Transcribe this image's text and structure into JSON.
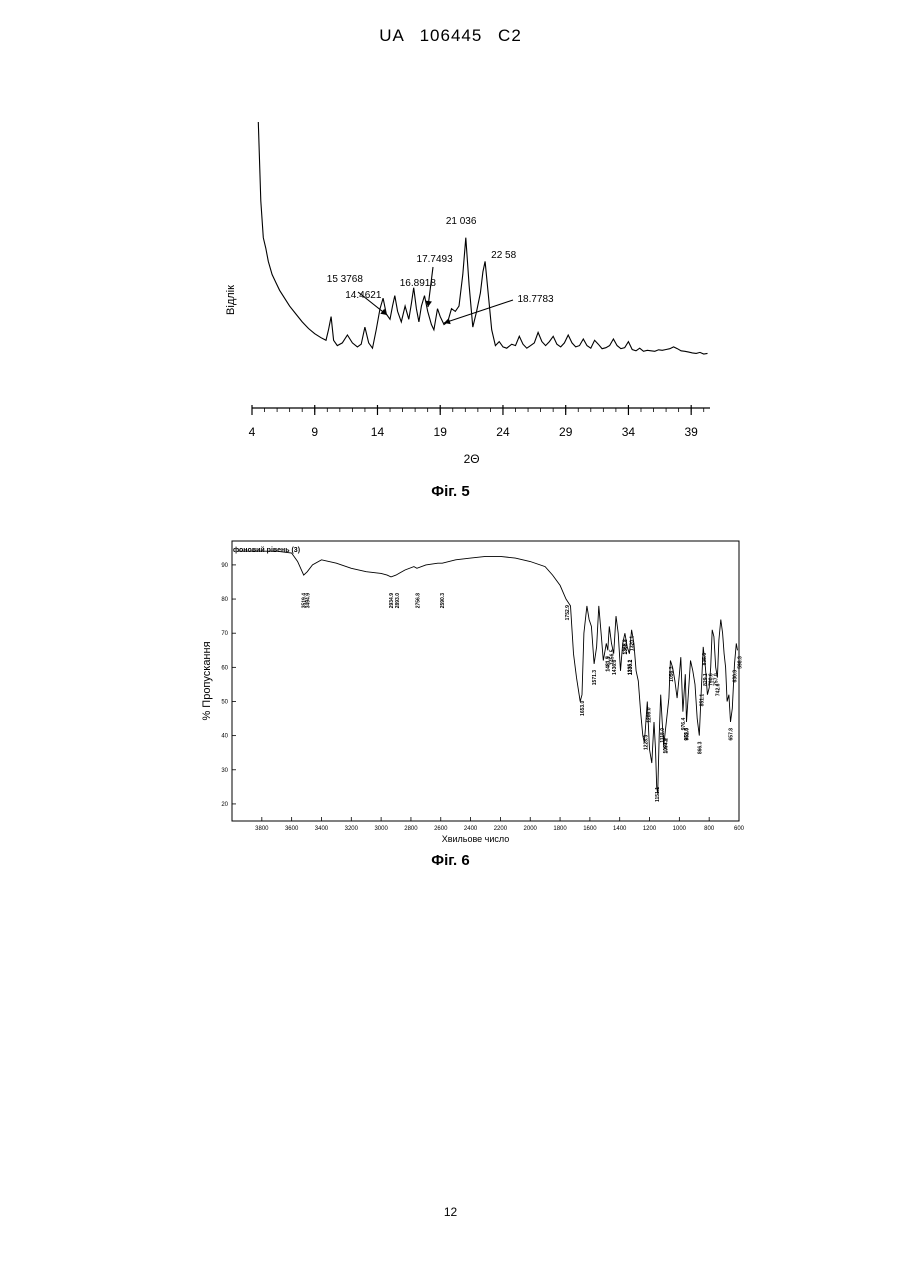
{
  "header": {
    "text": "UA   106445   C2"
  },
  "page_number": "12",
  "chart_data": [
    {
      "type": "line",
      "caption": "Фіг. 5",
      "xlabel": "2Θ",
      "ylabel": "Відлік",
      "xlim": [
        4,
        40.5
      ],
      "x_ticks": [
        4,
        9,
        14,
        19,
        24,
        29,
        34,
        39
      ],
      "x_tick_labels": [
        "4",
        "9",
        "14",
        "19",
        "24",
        "29",
        "34",
        "39"
      ],
      "series": [
        {
          "x": [
            4.5,
            4.7,
            4.9,
            5.1,
            5.3,
            5.6,
            5.9,
            6.2,
            6.6,
            7.0,
            7.5,
            8.0,
            8.5,
            9.0,
            9.5,
            9.9,
            10.1,
            10.3,
            10.5,
            10.8,
            11.2,
            11.6,
            12.0,
            12.4,
            12.7,
            13.0,
            13.3,
            13.6,
            13.9,
            14.2,
            14.45,
            14.7,
            15.0,
            15.2,
            15.38,
            15.6,
            15.9,
            16.2,
            16.5,
            16.7,
            16.89,
            17.1,
            17.3,
            17.5,
            17.75,
            18.0,
            18.3,
            18.5,
            18.78,
            19.0,
            19.3,
            19.6,
            19.9,
            20.2,
            20.5,
            20.8,
            21.04,
            21.3,
            21.6,
            21.9,
            22.2,
            22.4,
            22.58,
            22.8,
            23.1,
            23.4,
            23.7,
            24.0,
            24.3,
            24.7,
            25.0,
            25.3,
            25.6,
            25.9,
            26.2,
            26.5,
            26.8,
            27.1,
            27.4,
            27.7,
            28.0,
            28.3,
            28.6,
            28.9,
            29.2,
            29.5,
            29.8,
            30.1,
            30.4,
            30.7,
            31.0,
            31.3,
            31.6,
            31.9,
            32.2,
            32.5,
            32.8,
            33.1,
            33.4,
            33.7,
            34.0,
            34.3,
            34.6,
            34.9,
            35.2,
            35.5,
            35.8,
            36.1,
            36.4,
            36.7,
            37.0,
            37.3,
            37.6,
            37.9,
            38.2,
            38.5,
            38.8,
            39.1,
            39.4,
            39.7,
            40.0,
            40.3
          ],
          "y": [
            1000,
            700,
            560,
            520,
            470,
            420,
            390,
            360,
            330,
            300,
            270,
            240,
            215,
            195,
            180,
            170,
            210,
            260,
            170,
            150,
            160,
            190,
            160,
            145,
            155,
            220,
            160,
            140,
            210,
            290,
            330,
            270,
            250,
            300,
            340,
            280,
            240,
            300,
            250,
            310,
            370,
            290,
            240,
            300,
            340,
            280,
            230,
            210,
            290,
            260,
            230,
            240,
            290,
            280,
            300,
            420,
            560,
            380,
            220,
            280,
            350,
            430,
            470,
            360,
            210,
            150,
            165,
            145,
            140,
            155,
            150,
            185,
            155,
            140,
            150,
            160,
            200,
            165,
            150,
            165,
            185,
            155,
            145,
            160,
            190,
            160,
            145,
            150,
            175,
            150,
            140,
            170,
            155,
            138,
            142,
            150,
            175,
            150,
            138,
            142,
            165,
            135,
            130,
            140,
            128,
            132,
            130,
            128,
            134,
            132,
            135,
            138,
            145,
            138,
            130,
            128,
            125,
            122,
            120,
            124,
            118,
            120
          ]
        }
      ],
      "annotations": [
        {
          "label": "21 036",
          "x": 21.04
        },
        {
          "label": "22 58",
          "x": 22.58
        },
        {
          "label": "17.7493",
          "x": 17.75
        },
        {
          "label": "15 3768",
          "x": 15.38
        },
        {
          "label": "14.4621",
          "x": 14.46
        },
        {
          "label": "16.8918",
          "x": 16.89
        },
        {
          "label": "18.7783",
          "x": 18.78
        }
      ]
    },
    {
      "type": "line",
      "caption": "Фіг. 6",
      "xlabel": "Хвильове число",
      "ylabel": "% Пропускання",
      "legend": "фоновий рівень (3)",
      "xlim": [
        4000,
        600
      ],
      "ylim": [
        15,
        97
      ],
      "x_ticks": [
        3800,
        3600,
        3400,
        3200,
        3000,
        2800,
        2600,
        2400,
        2200,
        2000,
        1800,
        1600,
        1400,
        1200,
        1000,
        800,
        600
      ],
      "x_tick_labels": [
        "3800",
        "3600",
        "3400",
        "3200",
        "3000",
        "2800",
        "2600",
        "2400",
        "2200",
        "2000",
        "1800",
        "1600",
        "1400",
        "1200",
        "1000",
        "800",
        "600"
      ],
      "y_ticks": [
        20,
        30,
        40,
        50,
        60,
        70,
        80,
        90
      ],
      "y_tick_labels": [
        "20",
        "30",
        "40",
        "50",
        "60",
        "70",
        "80",
        "90"
      ],
      "series": [
        {
          "x": [
            3960,
            3800,
            3700,
            3600,
            3560,
            3519,
            3495,
            3460,
            3400,
            3300,
            3200,
            3100,
            3000,
            2960,
            2934,
            2900,
            2880,
            2840,
            2780,
            2760,
            2700,
            2620,
            2590,
            2500,
            2400,
            2300,
            2200,
            2100,
            2000,
            1900,
            1850,
            1800,
            1760,
            1730,
            1710,
            1690,
            1665,
            1653,
            1640,
            1620,
            1605,
            1590,
            1572,
            1555,
            1540,
            1525,
            1510,
            1490,
            1480,
            1470,
            1455,
            1440,
            1425,
            1410,
            1395,
            1380,
            1365,
            1350,
            1335,
            1320,
            1305,
            1290,
            1275,
            1260,
            1245,
            1235,
            1228,
            1215,
            1200,
            1185,
            1170,
            1160,
            1152,
            1145,
            1135,
            1125,
            1115,
            1105,
            1095,
            1085,
            1070,
            1060,
            1045,
            1030,
            1015,
            1000,
            990,
            976,
            960,
            952,
            940,
            925,
            910,
            895,
            880,
            866,
            852,
            840,
            825,
            812,
            800,
            790,
            780,
            768,
            756,
            745,
            735,
            722,
            710,
            700,
            690,
            680,
            668,
            657,
            645,
            630,
            618,
            610
          ],
          "y": [
            94,
            94,
            94,
            93.5,
            91,
            87,
            88,
            90,
            91.5,
            90.5,
            89,
            88,
            87.5,
            87,
            86.5,
            87,
            87.5,
            88.5,
            89.5,
            89,
            90,
            90.5,
            90.5,
            91.5,
            92,
            92.5,
            92.5,
            92,
            91,
            89.5,
            87,
            84,
            80,
            78,
            64,
            57,
            50,
            52,
            70,
            78,
            74,
            72,
            61,
            66,
            78,
            70,
            62,
            67,
            65,
            72,
            67,
            64,
            75,
            70,
            59,
            67,
            70,
            66,
            64,
            71,
            67,
            59,
            56,
            47,
            40,
            38,
            42,
            50,
            36,
            32,
            44,
            36,
            25,
            23,
            40,
            52,
            44,
            37,
            41,
            45,
            51,
            62,
            60,
            56,
            51,
            58,
            63,
            47,
            58,
            44,
            52,
            62,
            59,
            55,
            45,
            40,
            54,
            66,
            60,
            52,
            54,
            60,
            71,
            69,
            60,
            57,
            68,
            74,
            70,
            64,
            60,
            50,
            52,
            44,
            48,
            61,
            67,
            65
          ]
        }
      ],
      "annotations": [
        "3519.4",
        "3494.9",
        "2934.9",
        "2893.0",
        "2756.8",
        "2590.3",
        "1752.9",
        "1653.0",
        "1571.3",
        "1481.9",
        "1481.7",
        "1456.5",
        "1436.8",
        "1368.2",
        "1365.8",
        "1335.1",
        "1330.2",
        "1320.1",
        "1228.3",
        "1208.0",
        "1151.1",
        "1118.0",
        "1097.4",
        "1094.2",
        "1056.3",
        "976.4",
        "955.8",
        "952.0",
        "866.3",
        "851.1",
        "835.6",
        "829.1",
        "790.6",
        "757.0",
        "742.6",
        "657.8",
        "630.3",
        "598.3"
      ]
    }
  ]
}
